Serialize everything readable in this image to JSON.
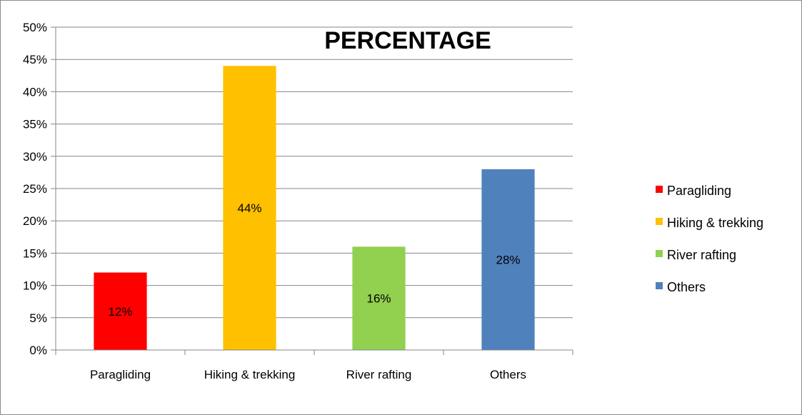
{
  "chart_data": {
    "type": "bar",
    "title": "PERCENTAGE",
    "categories": [
      "Paragliding",
      "Hiking & trekking",
      "River rafting",
      "Others"
    ],
    "values": [
      12,
      44,
      16,
      28
    ],
    "data_labels": [
      "12%",
      "44%",
      "16%",
      "28%"
    ],
    "colors": [
      "#ff0000",
      "#ffc000",
      "#92d050",
      "#4f81bd"
    ],
    "ylim": [
      0,
      50
    ],
    "yticks": [
      0,
      5,
      10,
      15,
      20,
      25,
      30,
      35,
      40,
      45,
      50
    ],
    "ytick_labels": [
      "0%",
      "5%",
      "10%",
      "15%",
      "20%",
      "25%",
      "30%",
      "35%",
      "40%",
      "45%",
      "50%"
    ],
    "grid": true,
    "legend_position": "right",
    "legend": [
      "Paragliding",
      "Hiking & trekking",
      "River rafting",
      "Others"
    ]
  }
}
